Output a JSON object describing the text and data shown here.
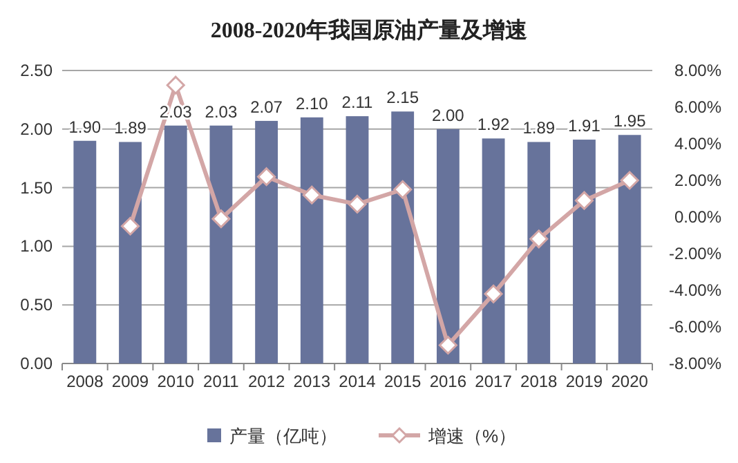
{
  "chart_data": {
    "type": "bar",
    "title": "2008-2020年我国原油产量及增速",
    "categories": [
      "2008",
      "2009",
      "2010",
      "2011",
      "2012",
      "2013",
      "2014",
      "2015",
      "2016",
      "2017",
      "2018",
      "2019",
      "2020"
    ],
    "series": [
      {
        "name": "产量（亿吨）",
        "color": "#67739b",
        "values": [
          1.9,
          1.89,
          2.03,
          2.03,
          2.07,
          2.1,
          2.11,
          2.15,
          2.0,
          1.92,
          1.89,
          1.91,
          1.95
        ],
        "value_labels": [
          "1.90",
          "1.89",
          "2.03",
          "2.03",
          "2.07",
          "2.10",
          "2.11",
          "2.15",
          "2.00",
          "1.92",
          "1.89",
          "1.91",
          "1.95"
        ]
      },
      {
        "name": "增速（%）",
        "type": "line",
        "axis": "y2",
        "color": "#d3a6a6",
        "marker": "diamond",
        "values": [
          null,
          -0.5,
          7.2,
          -0.1,
          2.2,
          1.2,
          0.7,
          1.5,
          -7.0,
          -4.2,
          -1.2,
          0.9,
          2.0
        ]
      }
    ],
    "ylim": [
      0,
      2.5
    ],
    "yticks": [
      {
        "value": 0,
        "label": "0.00"
      },
      {
        "value": 0.5,
        "label": "0.50"
      },
      {
        "value": 1,
        "label": "1.00"
      },
      {
        "value": 1.5,
        "label": "1.50"
      },
      {
        "value": 2,
        "label": "2.00"
      },
      {
        "value": 2.5,
        "label": "2.50"
      }
    ],
    "y2lim": [
      -8,
      8
    ],
    "y2ticks": [
      {
        "value": -8,
        "label": "-8.00%"
      },
      {
        "value": -6,
        "label": "-6.00%"
      },
      {
        "value": -4,
        "label": "-4.00%"
      },
      {
        "value": -2,
        "label": "-2.00%"
      },
      {
        "value": 0,
        "label": "0.00%"
      },
      {
        "value": 2,
        "label": "2.00%"
      },
      {
        "value": 4,
        "label": "4.00%"
      },
      {
        "value": 6,
        "label": "6.00%"
      },
      {
        "value": 8,
        "label": "8.00%"
      }
    ],
    "grid": "y",
    "legend": "bottom"
  }
}
